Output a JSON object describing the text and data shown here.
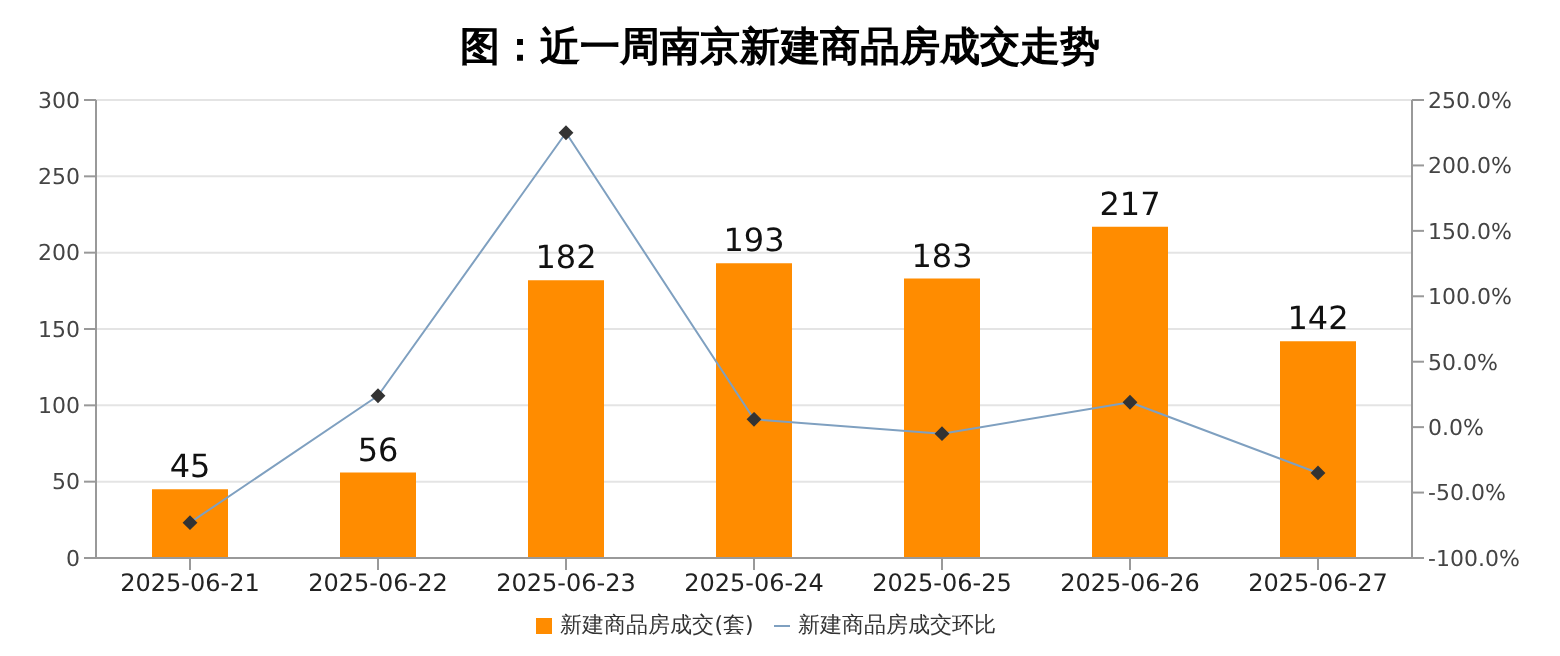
{
  "chart_data": {
    "type": "bar",
    "title": "图：近一周南京新建商品房成交走势",
    "categories": [
      "2025-06-21",
      "2025-06-22",
      "2025-06-23",
      "2025-06-24",
      "2025-06-25",
      "2025-06-26",
      "2025-06-27"
    ],
    "series": [
      {
        "name": "新建商品房成交(套)",
        "color": "#ff8c00",
        "values": [
          45,
          56,
          182,
          193,
          183,
          217,
          142
        ],
        "value_labels": [
          "45",
          "56",
          "182",
          "193",
          "183",
          "217",
          "142"
        ]
      },
      {
        "name": "新建商品房成交环比",
        "type": "line",
        "axis": "y2",
        "color": "#7fa0c0",
        "marker": "diamond",
        "values": [
          -73,
          24,
          225,
          6,
          -5,
          19,
          -35
        ]
      }
    ],
    "ylim": [
      0,
      300
    ],
    "yticks": [
      0,
      50,
      100,
      150,
      200,
      250,
      300
    ],
    "y2lim": [
      -100,
      250
    ],
    "y2ticks": [
      {
        "value": -100,
        "label": "-100.0%"
      },
      {
        "value": -50,
        "label": "-50.0%"
      },
      {
        "value": 0,
        "label": "0.0%"
      },
      {
        "value": 50,
        "label": "50.0%"
      },
      {
        "value": 100,
        "label": "100.0%"
      },
      {
        "value": 150,
        "label": "150.0%"
      },
      {
        "value": 200,
        "label": "200.0%"
      },
      {
        "value": 250,
        "label": "250.0%"
      }
    ],
    "grid": "y",
    "legend": "bottom"
  }
}
